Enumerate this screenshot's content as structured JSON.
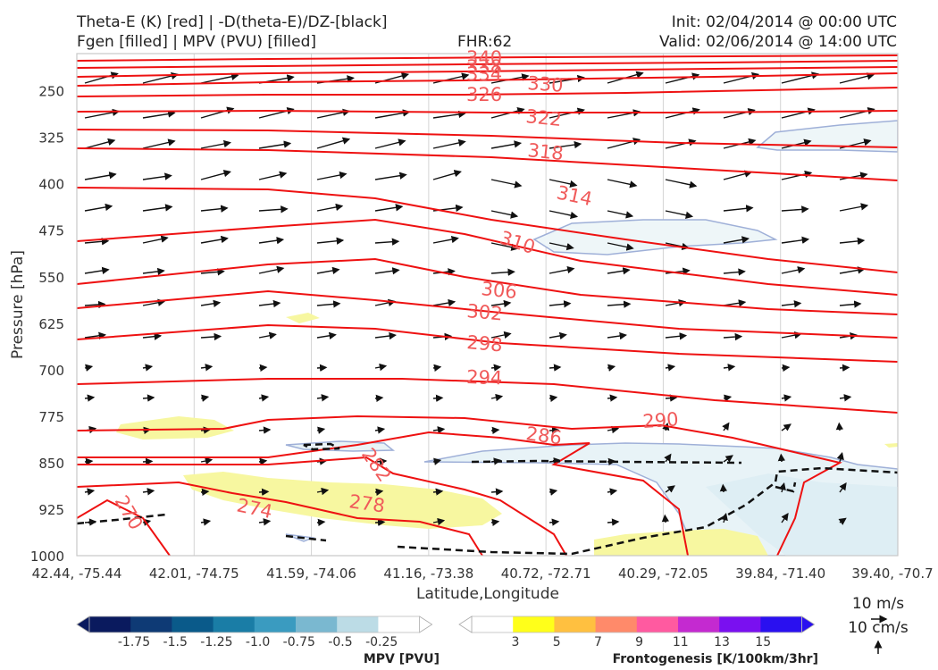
{
  "header": {
    "title_line1": "Theta-E (K) [red] | -D(theta-E)/DZ-[black]",
    "title_line2": "Fgen [filled] | MPV (PVU) [filled]",
    "fhr": "FHR:62",
    "init": "Init: 02/04/2014 @ 00:00 UTC",
    "valid": "Valid: 02/06/2014 @ 14:00 UTC"
  },
  "chart_data": {
    "type": "cross-section",
    "xlabel": "Latitude,Longitude",
    "ylabel": "Pressure [hPa]",
    "x_ticks": [
      "42.44, -75.44",
      "42.01, -74.75",
      "41.59, -74.06",
      "41.16, -73.38",
      "40.72, -72.71",
      "40.29, -72.05",
      "39.84, -71.40",
      "39.40, -70.7"
    ],
    "y_ticks": [
      250,
      325,
      400,
      475,
      550,
      625,
      700,
      775,
      850,
      925,
      1000
    ],
    "ylim": [
      1000,
      190
    ],
    "grid": true,
    "theta_e_labels": [
      "340",
      "338",
      "334",
      "330",
      "326",
      "322",
      "318",
      "314",
      "310",
      "306",
      "302",
      "298",
      "294",
      "290",
      "286",
      "282",
      "278",
      "274",
      "270"
    ],
    "theta_e_color": "#ee1111",
    "mpv_colorbar": {
      "title": "MPV [PVU]",
      "ticks": [
        "-1.75",
        "-1.5",
        "-1.25",
        "-1.0",
        "-0.75",
        "-0.5",
        "-0.25"
      ],
      "colors": [
        "#0a1a5e",
        "#0e3a75",
        "#0a5a8a",
        "#1a7da6",
        "#3a9bc0",
        "#7ab8d0",
        "#bcdce6",
        "#ffffff"
      ]
    },
    "fgen_colorbar": {
      "title": "Frontogenesis [K/100km/3hr]",
      "ticks": [
        "3",
        "5",
        "7",
        "9",
        "11",
        "13",
        "15"
      ],
      "colors": [
        "#ffffff",
        "#ffff1a",
        "#ffc040",
        "#ff8a6a",
        "#ff5aa0",
        "#c42ad0",
        "#7a10f0",
        "#2a10f0"
      ]
    },
    "wind_key": {
      "horizontal": "10 m/s",
      "vertical": "10 cm/s"
    }
  }
}
